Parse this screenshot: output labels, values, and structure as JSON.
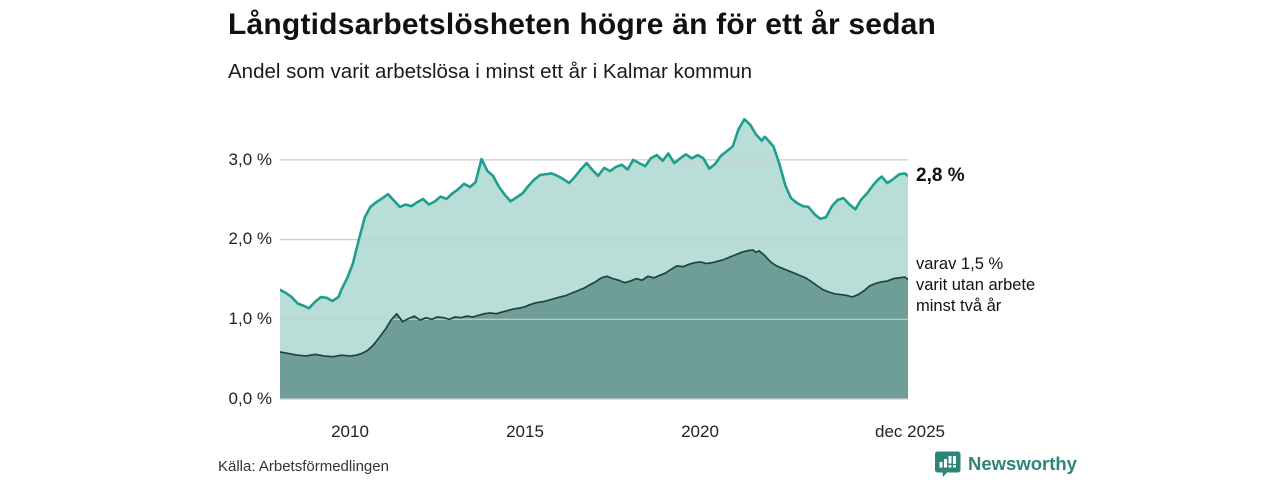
{
  "header": {
    "title": "Långtidsarbetslösheten högre än för ett år sedan",
    "subtitle": "Andel som varit arbetslösa i minst ett år i Kalmar kommun"
  },
  "colors": {
    "accent_line": "#1e9e8e",
    "accent_fill": "#b9ddd7",
    "dark_fill": "#6f9e98",
    "dark_line": "#1d443f",
    "gridline": "#cccccc",
    "brand_teal": "#2e8577",
    "text": "#111111"
  },
  "chart_data": {
    "type": "area",
    "title": "Långtidsarbetslösheten högre än för ett år sedan",
    "subtitle": "Andel som varit arbetslösa i minst ett år i Kalmar kommun",
    "grid": true,
    "legend_position": "right-annotations",
    "x_axis": {
      "range": [
        2008.0,
        2025.92
      ],
      "ticks": [
        {
          "label": "2010",
          "value": 2010
        },
        {
          "label": "2015",
          "value": 2015
        },
        {
          "label": "2020",
          "value": 2020
        },
        {
          "label": "dec 2025",
          "value": 2025.92
        }
      ]
    },
    "y_axis": {
      "range": [
        0,
        3.63
      ],
      "unit": "%",
      "ticks": [
        {
          "label": "0,0 %",
          "value": 0
        },
        {
          "label": "1,0 %",
          "value": 1
        },
        {
          "label": "2,0 %",
          "value": 2
        },
        {
          "label": "3,0 %",
          "value": 3
        }
      ]
    },
    "series": [
      {
        "name": "Andel som varit arbetslösa i minst ett år",
        "line_color": "#1e9e8e",
        "fill_color": "#b9ddd7",
        "line_width": 2.6,
        "end_value": "2,8 %",
        "points": [
          [
            2008.0,
            1.37
          ],
          [
            2008.17,
            1.33
          ],
          [
            2008.33,
            1.28
          ],
          [
            2008.5,
            1.2
          ],
          [
            2008.67,
            1.17
          ],
          [
            2008.83,
            1.14
          ],
          [
            2009.0,
            1.22
          ],
          [
            2009.17,
            1.28
          ],
          [
            2009.33,
            1.27
          ],
          [
            2009.5,
            1.23
          ],
          [
            2009.67,
            1.28
          ],
          [
            2009.75,
            1.37
          ],
          [
            2009.92,
            1.52
          ],
          [
            2010.08,
            1.7
          ],
          [
            2010.25,
            2.0
          ],
          [
            2010.42,
            2.28
          ],
          [
            2010.58,
            2.41
          ],
          [
            2010.75,
            2.47
          ],
          [
            2010.92,
            2.52
          ],
          [
            2011.08,
            2.57
          ],
          [
            2011.25,
            2.49
          ],
          [
            2011.42,
            2.41
          ],
          [
            2011.58,
            2.44
          ],
          [
            2011.75,
            2.42
          ],
          [
            2011.92,
            2.47
          ],
          [
            2012.08,
            2.51
          ],
          [
            2012.25,
            2.44
          ],
          [
            2012.42,
            2.48
          ],
          [
            2012.58,
            2.54
          ],
          [
            2012.75,
            2.51
          ],
          [
            2012.92,
            2.58
          ],
          [
            2013.08,
            2.63
          ],
          [
            2013.25,
            2.7
          ],
          [
            2013.42,
            2.66
          ],
          [
            2013.58,
            2.72
          ],
          [
            2013.75,
            3.01
          ],
          [
            2013.92,
            2.86
          ],
          [
            2014.08,
            2.8
          ],
          [
            2014.25,
            2.66
          ],
          [
            2014.42,
            2.56
          ],
          [
            2014.58,
            2.48
          ],
          [
            2014.75,
            2.53
          ],
          [
            2014.92,
            2.58
          ],
          [
            2015.08,
            2.67
          ],
          [
            2015.25,
            2.75
          ],
          [
            2015.42,
            2.81
          ],
          [
            2015.58,
            2.82
          ],
          [
            2015.75,
            2.83
          ],
          [
            2015.92,
            2.8
          ],
          [
            2016.08,
            2.76
          ],
          [
            2016.25,
            2.71
          ],
          [
            2016.42,
            2.79
          ],
          [
            2016.58,
            2.88
          ],
          [
            2016.75,
            2.96
          ],
          [
            2016.92,
            2.87
          ],
          [
            2017.08,
            2.8
          ],
          [
            2017.25,
            2.9
          ],
          [
            2017.42,
            2.86
          ],
          [
            2017.58,
            2.91
          ],
          [
            2017.75,
            2.94
          ],
          [
            2017.92,
            2.88
          ],
          [
            2018.08,
            3.0
          ],
          [
            2018.25,
            2.96
          ],
          [
            2018.42,
            2.92
          ],
          [
            2018.58,
            3.02
          ],
          [
            2018.75,
            3.06
          ],
          [
            2018.92,
            2.99
          ],
          [
            2019.08,
            3.08
          ],
          [
            2019.25,
            2.96
          ],
          [
            2019.42,
            3.02
          ],
          [
            2019.58,
            3.07
          ],
          [
            2019.75,
            3.02
          ],
          [
            2019.92,
            3.06
          ],
          [
            2020.08,
            3.02
          ],
          [
            2020.25,
            2.89
          ],
          [
            2020.42,
            2.95
          ],
          [
            2020.58,
            3.05
          ],
          [
            2020.75,
            3.11
          ],
          [
            2020.92,
            3.17
          ],
          [
            2021.08,
            3.38
          ],
          [
            2021.25,
            3.51
          ],
          [
            2021.42,
            3.44
          ],
          [
            2021.58,
            3.32
          ],
          [
            2021.75,
            3.24
          ],
          [
            2021.83,
            3.29
          ],
          [
            2021.92,
            3.25
          ],
          [
            2022.08,
            3.17
          ],
          [
            2022.25,
            2.95
          ],
          [
            2022.42,
            2.68
          ],
          [
            2022.58,
            2.52
          ],
          [
            2022.75,
            2.46
          ],
          [
            2022.92,
            2.42
          ],
          [
            2023.08,
            2.41
          ],
          [
            2023.25,
            2.32
          ],
          [
            2023.42,
            2.26
          ],
          [
            2023.58,
            2.28
          ],
          [
            2023.75,
            2.42
          ],
          [
            2023.92,
            2.5
          ],
          [
            2024.08,
            2.52
          ],
          [
            2024.25,
            2.44
          ],
          [
            2024.42,
            2.38
          ],
          [
            2024.58,
            2.5
          ],
          [
            2024.75,
            2.58
          ],
          [
            2024.92,
            2.68
          ],
          [
            2025.08,
            2.76
          ],
          [
            2025.17,
            2.79
          ],
          [
            2025.33,
            2.71
          ],
          [
            2025.5,
            2.76
          ],
          [
            2025.67,
            2.82
          ],
          [
            2025.83,
            2.83
          ],
          [
            2025.92,
            2.8
          ]
        ]
      },
      {
        "name": "varav utan arbete minst två år",
        "line_color": "#1d443f",
        "fill_color": "#6f9e98",
        "line_width": 1.7,
        "end_value": "1,5 %",
        "points": [
          [
            2008.0,
            0.59
          ],
          [
            2008.25,
            0.57
          ],
          [
            2008.5,
            0.55
          ],
          [
            2008.75,
            0.54
          ],
          [
            2009.0,
            0.56
          ],
          [
            2009.25,
            0.54
          ],
          [
            2009.5,
            0.53
          ],
          [
            2009.75,
            0.55
          ],
          [
            2010.0,
            0.54
          ],
          [
            2010.17,
            0.55
          ],
          [
            2010.33,
            0.57
          ],
          [
            2010.5,
            0.61
          ],
          [
            2010.67,
            0.68
          ],
          [
            2010.83,
            0.77
          ],
          [
            2011.0,
            0.87
          ],
          [
            2011.17,
            0.99
          ],
          [
            2011.33,
            1.07
          ],
          [
            2011.5,
            0.97
          ],
          [
            2011.67,
            1.01
          ],
          [
            2011.83,
            1.04
          ],
          [
            2012.0,
            0.99
          ],
          [
            2012.17,
            1.02
          ],
          [
            2012.33,
            1.0
          ],
          [
            2012.5,
            1.03
          ],
          [
            2012.67,
            1.02
          ],
          [
            2012.83,
            1.0
          ],
          [
            2013.0,
            1.03
          ],
          [
            2013.17,
            1.02
          ],
          [
            2013.33,
            1.04
          ],
          [
            2013.5,
            1.03
          ],
          [
            2013.67,
            1.05
          ],
          [
            2013.83,
            1.07
          ],
          [
            2014.0,
            1.08
          ],
          [
            2014.17,
            1.07
          ],
          [
            2014.33,
            1.09
          ],
          [
            2014.5,
            1.11
          ],
          [
            2014.67,
            1.13
          ],
          [
            2014.83,
            1.14
          ],
          [
            2015.0,
            1.16
          ],
          [
            2015.17,
            1.19
          ],
          [
            2015.33,
            1.21
          ],
          [
            2015.5,
            1.22
          ],
          [
            2015.67,
            1.24
          ],
          [
            2015.83,
            1.26
          ],
          [
            2016.0,
            1.28
          ],
          [
            2016.17,
            1.3
          ],
          [
            2016.33,
            1.33
          ],
          [
            2016.5,
            1.36
          ],
          [
            2016.67,
            1.39
          ],
          [
            2016.83,
            1.43
          ],
          [
            2017.0,
            1.47
          ],
          [
            2017.17,
            1.52
          ],
          [
            2017.33,
            1.54
          ],
          [
            2017.5,
            1.51
          ],
          [
            2017.67,
            1.49
          ],
          [
            2017.83,
            1.46
          ],
          [
            2018.0,
            1.48
          ],
          [
            2018.17,
            1.51
          ],
          [
            2018.33,
            1.49
          ],
          [
            2018.5,
            1.54
          ],
          [
            2018.67,
            1.52
          ],
          [
            2018.83,
            1.55
          ],
          [
            2019.0,
            1.58
          ],
          [
            2019.17,
            1.63
          ],
          [
            2019.33,
            1.67
          ],
          [
            2019.5,
            1.66
          ],
          [
            2019.67,
            1.69
          ],
          [
            2019.83,
            1.71
          ],
          [
            2020.0,
            1.72
          ],
          [
            2020.17,
            1.7
          ],
          [
            2020.33,
            1.71
          ],
          [
            2020.5,
            1.73
          ],
          [
            2020.67,
            1.75
          ],
          [
            2020.83,
            1.78
          ],
          [
            2021.0,
            1.81
          ],
          [
            2021.17,
            1.84
          ],
          [
            2021.33,
            1.86
          ],
          [
            2021.5,
            1.87
          ],
          [
            2021.58,
            1.84
          ],
          [
            2021.67,
            1.86
          ],
          [
            2021.83,
            1.8
          ],
          [
            2022.0,
            1.72
          ],
          [
            2022.17,
            1.67
          ],
          [
            2022.33,
            1.64
          ],
          [
            2022.5,
            1.61
          ],
          [
            2022.67,
            1.58
          ],
          [
            2022.83,
            1.55
          ],
          [
            2023.0,
            1.52
          ],
          [
            2023.17,
            1.47
          ],
          [
            2023.33,
            1.42
          ],
          [
            2023.5,
            1.37
          ],
          [
            2023.67,
            1.34
          ],
          [
            2023.83,
            1.32
          ],
          [
            2024.0,
            1.31
          ],
          [
            2024.17,
            1.3
          ],
          [
            2024.33,
            1.28
          ],
          [
            2024.5,
            1.31
          ],
          [
            2024.67,
            1.36
          ],
          [
            2024.83,
            1.42
          ],
          [
            2025.0,
            1.45
          ],
          [
            2025.17,
            1.47
          ],
          [
            2025.33,
            1.48
          ],
          [
            2025.5,
            1.51
          ],
          [
            2025.67,
            1.52
          ],
          [
            2025.83,
            1.53
          ],
          [
            2025.92,
            1.5
          ]
        ]
      }
    ]
  },
  "annotations": {
    "end_value_label": "2,8 %",
    "varav_lines": [
      "varav 1,5 %",
      "varit utan arbete",
      "minst två år"
    ]
  },
  "footer": {
    "source": "Källa: Arbetsförmedlingen",
    "brand": "Newsworthy"
  }
}
